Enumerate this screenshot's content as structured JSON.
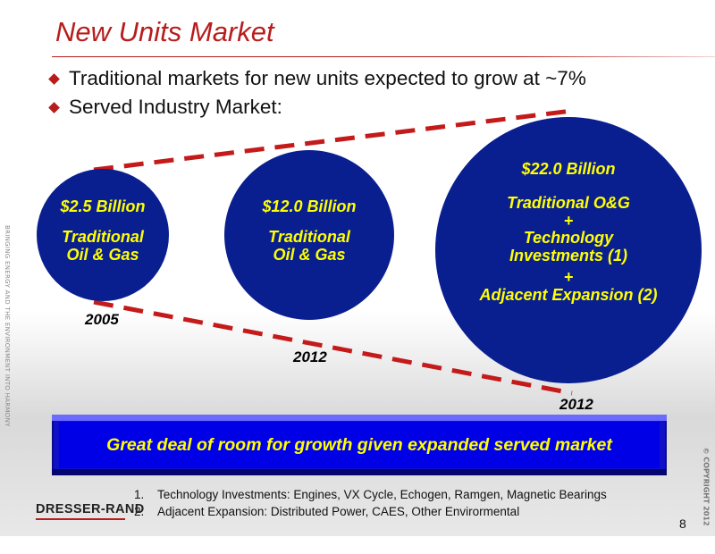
{
  "title": "New Units Market",
  "bullets": [
    "Traditional markets for new units expected to grow at ~7%",
    "Served Industry Market:"
  ],
  "circles": [
    {
      "value": "$2.5 Billion",
      "lines": [
        "Traditional",
        "Oil & Gas"
      ],
      "year": "2005"
    },
    {
      "value": "$12.0 Billion",
      "lines": [
        "Traditional",
        "Oil & Gas"
      ],
      "year": "2012"
    },
    {
      "value": "$22.0 Billion",
      "lines": [
        "Traditional O&G",
        "+",
        "Technology",
        "Investments (1)",
        "+",
        "Adjacent Expansion (2)"
      ],
      "year": "2012"
    }
  ],
  "banner": "Great deal of room for growth given expanded served market",
  "footnotes": [
    {
      "num": "1.",
      "text": "Technology Investments: Engines, VX Cycle, Echogen, Ramgen, Magnetic Bearings"
    },
    {
      "num": "2.",
      "text": "Adjacent Expansion: Distributed Power, CAES, Other Envirormental"
    }
  ],
  "side_text": "BRINGING ENERGY AND THE ENVIRONMENT INTO HARMONY",
  "logo": "DRESSER-RAND",
  "copyright": "© COPYRIGHT 2012",
  "page_number": "8",
  "colors": {
    "title": "#b81c1c",
    "circle_fill": "#0a1f8f",
    "circle_text": "#ffff00",
    "dashed_line": "#c41a1a",
    "banner": "#0000e6"
  }
}
